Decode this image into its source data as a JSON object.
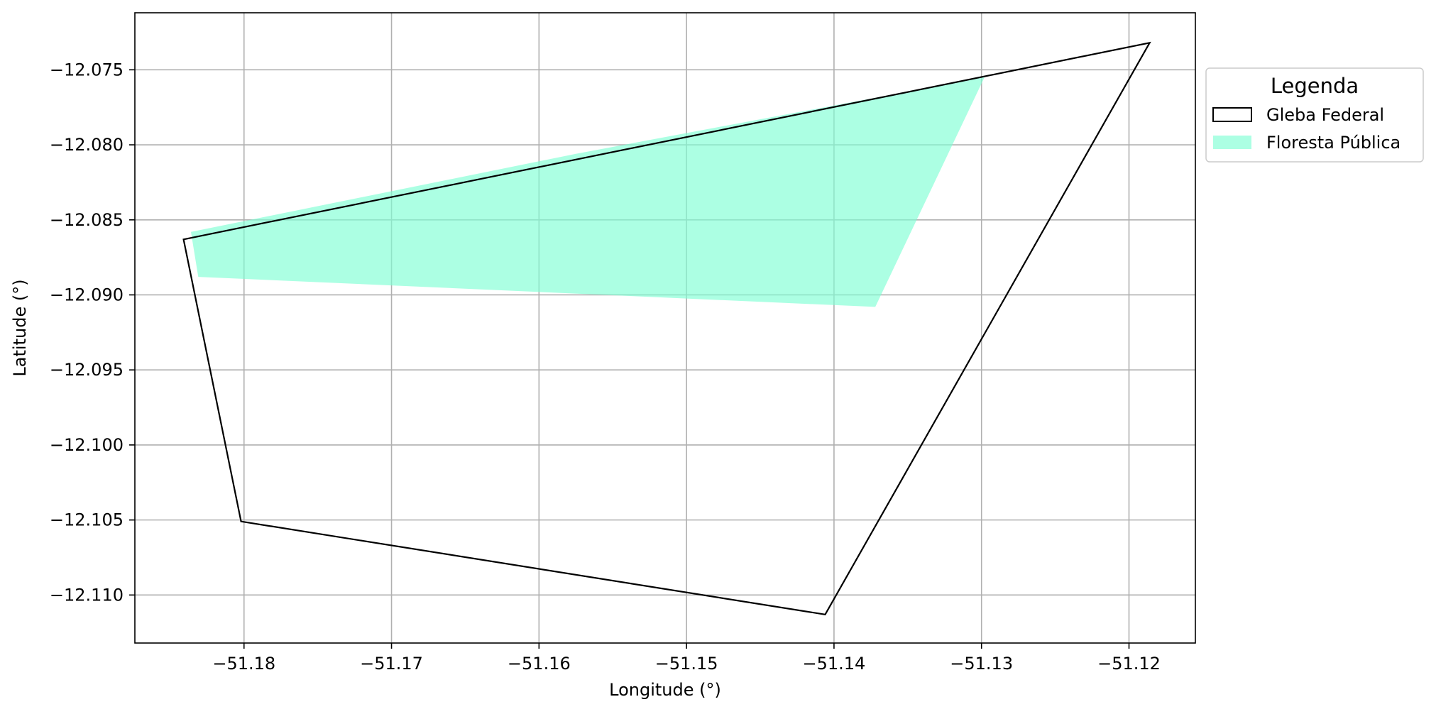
{
  "chart_data": {
    "type": "map",
    "xlabel": "Longitude (°)",
    "ylabel": "Latitude (°)",
    "xlim": [
      -51.1874,
      -51.1155
    ],
    "ylim": [
      -12.1132,
      -12.0712
    ],
    "xticks": [
      -51.18,
      -51.17,
      -51.16,
      -51.15,
      -51.14,
      -51.13,
      -51.12
    ],
    "xtick_labels": [
      "−51.18",
      "−51.17",
      "−51.16",
      "−51.15",
      "−51.14",
      "−51.13",
      "−51.12"
    ],
    "yticks": [
      -12.075,
      -12.08,
      -12.085,
      -12.09,
      -12.095,
      -12.1,
      -12.105,
      -12.11
    ],
    "ytick_labels": [
      "−12.075",
      "−12.080",
      "−12.085",
      "−12.090",
      "−12.095",
      "−12.100",
      "−12.105",
      "−12.110"
    ],
    "grid": true,
    "legend": {
      "title": "Legenda",
      "position": "outside-right-top",
      "entries": [
        "Gleba Federal",
        "Floresta Pública"
      ]
    },
    "series": [
      {
        "name": "Gleba Federal",
        "type": "polygon-outline",
        "color": "#000000",
        "points": [
          [
            -51.1841,
            -12.0863
          ],
          [
            -51.1186,
            -12.0732
          ],
          [
            -51.1406,
            -12.1113
          ],
          [
            -51.1802,
            -12.1051
          ]
        ]
      },
      {
        "name": "Floresta Pública",
        "type": "polygon-fill",
        "color": "#7fffd4",
        "opacity": 0.65,
        "points": [
          [
            -51.1836,
            -12.0858
          ],
          [
            -51.1575,
            -12.0806
          ],
          [
            -51.1298,
            -12.0755
          ],
          [
            -51.1372,
            -12.0908
          ],
          [
            -51.1831,
            -12.0888
          ]
        ]
      }
    ]
  }
}
